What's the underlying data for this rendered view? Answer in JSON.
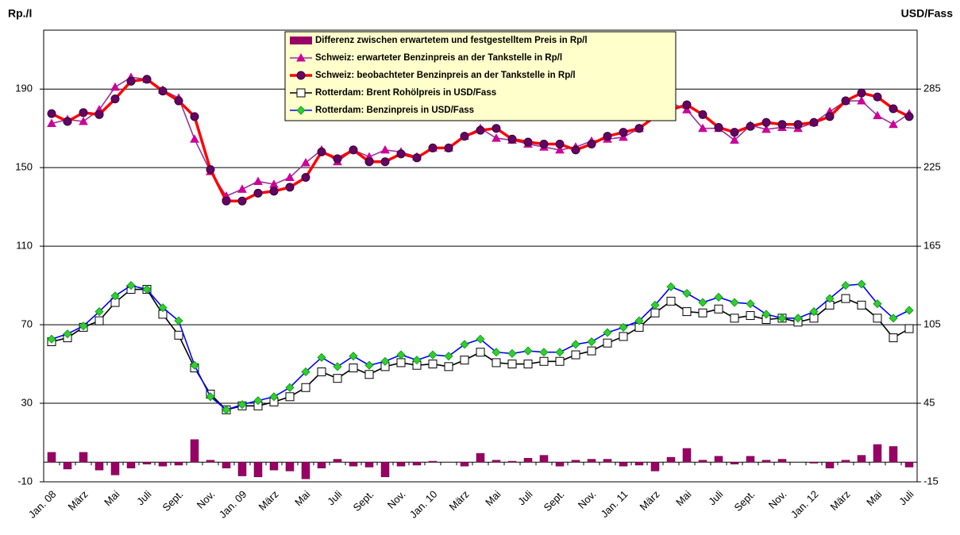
{
  "chart_data": {
    "type": "line",
    "y_label": "Rp./l",
    "y2_label": "USD/Fass",
    "categories": [
      "Jan. 08",
      null,
      "März",
      null,
      "Mai",
      null,
      "Juli",
      null,
      "Sept.",
      null,
      "Nov.",
      null,
      "Jan. 09",
      null,
      "März",
      null,
      "Mai",
      null,
      "Juli",
      null,
      "Sept.",
      null,
      "Nov.",
      null,
      "Jan. 10",
      null,
      "März",
      null,
      "Mai",
      null,
      "Juli",
      null,
      "Sept.",
      null,
      "Nov.",
      null,
      "Jan. 11",
      null,
      "März",
      null,
      "Mai",
      null,
      "Juli",
      null,
      "Sept.",
      null,
      "Nov.",
      null,
      "Jan. 12",
      null,
      "März",
      null,
      "Mai",
      null,
      "Juli"
    ],
    "ylim": [
      -10,
      220
    ],
    "yticks": [
      -10,
      30,
      70,
      110,
      150,
      190
    ],
    "y2lim": [
      -15,
      330
    ],
    "y2ticks": [
      -15,
      45,
      105,
      165,
      225,
      285
    ],
    "grid": true,
    "legend": "top-center",
    "series": [
      {
        "name": "Differenz zwischen erwartetem  und festgestelltem  Preis in Rp/l",
        "type": "bar",
        "color": "#990066",
        "values": [
          5,
          -3.5,
          5,
          -4,
          -6.5,
          -3,
          -1,
          -2,
          -1.5,
          11.5,
          1,
          -3,
          -7,
          -7.5,
          -4,
          -4.5,
          -8.5,
          -3,
          1.5,
          -2,
          -2.5,
          -7.5,
          -2,
          -1.5,
          0.5,
          0,
          -2,
          4.5,
          1,
          0.5,
          2,
          3.5,
          -2,
          1,
          1.5,
          1.5,
          -2,
          -1.5,
          -4.5,
          2.5,
          7,
          1,
          3,
          -1,
          3,
          1,
          1.5,
          0,
          -0.5,
          -3,
          1,
          3.5,
          9,
          8,
          -2.5
        ]
      },
      {
        "name": "Schweiz: erwarteter  Benzinpreis  an der Tankstelle  in Rp/l",
        "type": "line",
        "color": "#993399",
        "marker": "triangle",
        "marker_color": "#cc0099",
        "values": [
          172.5,
          174.5,
          173.5,
          179.5,
          191,
          196,
          195,
          189.5,
          185.5,
          164.5,
          148,
          135.5,
          139,
          143,
          141.5,
          145,
          152.5,
          159,
          153,
          159,
          155.5,
          159,
          158,
          155.5,
          160,
          160,
          166,
          170,
          165,
          164,
          162,
          160.5,
          159,
          160.5,
          163.5,
          164.5,
          165.5,
          170,
          176,
          183,
          179.5,
          170,
          170,
          164,
          171.5,
          169.5,
          170.5,
          170,
          173,
          178.5,
          184,
          184,
          176.5,
          172,
          177.5
        ]
      },
      {
        "name": "Schweiz: beobachteter  Benzinpreis  an der Tankstelle  in Rp/l",
        "type": "line",
        "color": "#ff0000",
        "marker": "circle",
        "marker_color": "#660066",
        "values": [
          177.5,
          173.5,
          178,
          177,
          185,
          194,
          195,
          189,
          184,
          176,
          149,
          133,
          133,
          137,
          138,
          140,
          145,
          158,
          154.5,
          159,
          153,
          153,
          157,
          155,
          160,
          160,
          166,
          169,
          170,
          164.5,
          163,
          162,
          162,
          159,
          162,
          166,
          168,
          170,
          176,
          179.5,
          182,
          177,
          170.5,
          168,
          171,
          173,
          172,
          172,
          173,
          176,
          184,
          188,
          186,
          180,
          176
        ]
      },
      {
        "name": "Rotterdam:  Brent  Rohölpreis  in USD/Fass",
        "type": "line",
        "axis": "y2",
        "color": "#000000",
        "marker": "square",
        "marker_color": "#ffffff",
        "values": [
          92,
          95,
          103,
          108,
          122,
          132,
          132,
          113,
          97,
          72,
          52,
          40,
          43,
          43,
          46,
          50,
          57,
          69,
          64,
          72,
          67,
          73,
          76,
          74,
          75,
          73,
          78,
          84,
          76,
          75,
          75,
          77,
          77,
          82,
          85,
          91,
          96,
          103,
          114,
          123,
          115,
          114,
          117,
          110,
          112,
          109,
          110,
          107,
          110,
          120,
          125,
          120,
          110,
          95,
          102
        ]
      },
      {
        "name": "Rotterdam:  Benzinpreis  in USD/Fass",
        "type": "line",
        "axis": "y2",
        "color": "#0000ff",
        "marker": "diamond",
        "marker_color": "#33cc33",
        "values": [
          94,
          98,
          104,
          115,
          127,
          135,
          132,
          118,
          108,
          74,
          50,
          40,
          44,
          47,
          50,
          57,
          69,
          80,
          73,
          81,
          74,
          77,
          82,
          78,
          82,
          81,
          90,
          94,
          84,
          83,
          85,
          84,
          84,
          90,
          92,
          99,
          103,
          108,
          120,
          134,
          129,
          122,
          126,
          122,
          121,
          113,
          110,
          110,
          115,
          125,
          135,
          136,
          121,
          110,
          116
        ]
      }
    ]
  }
}
